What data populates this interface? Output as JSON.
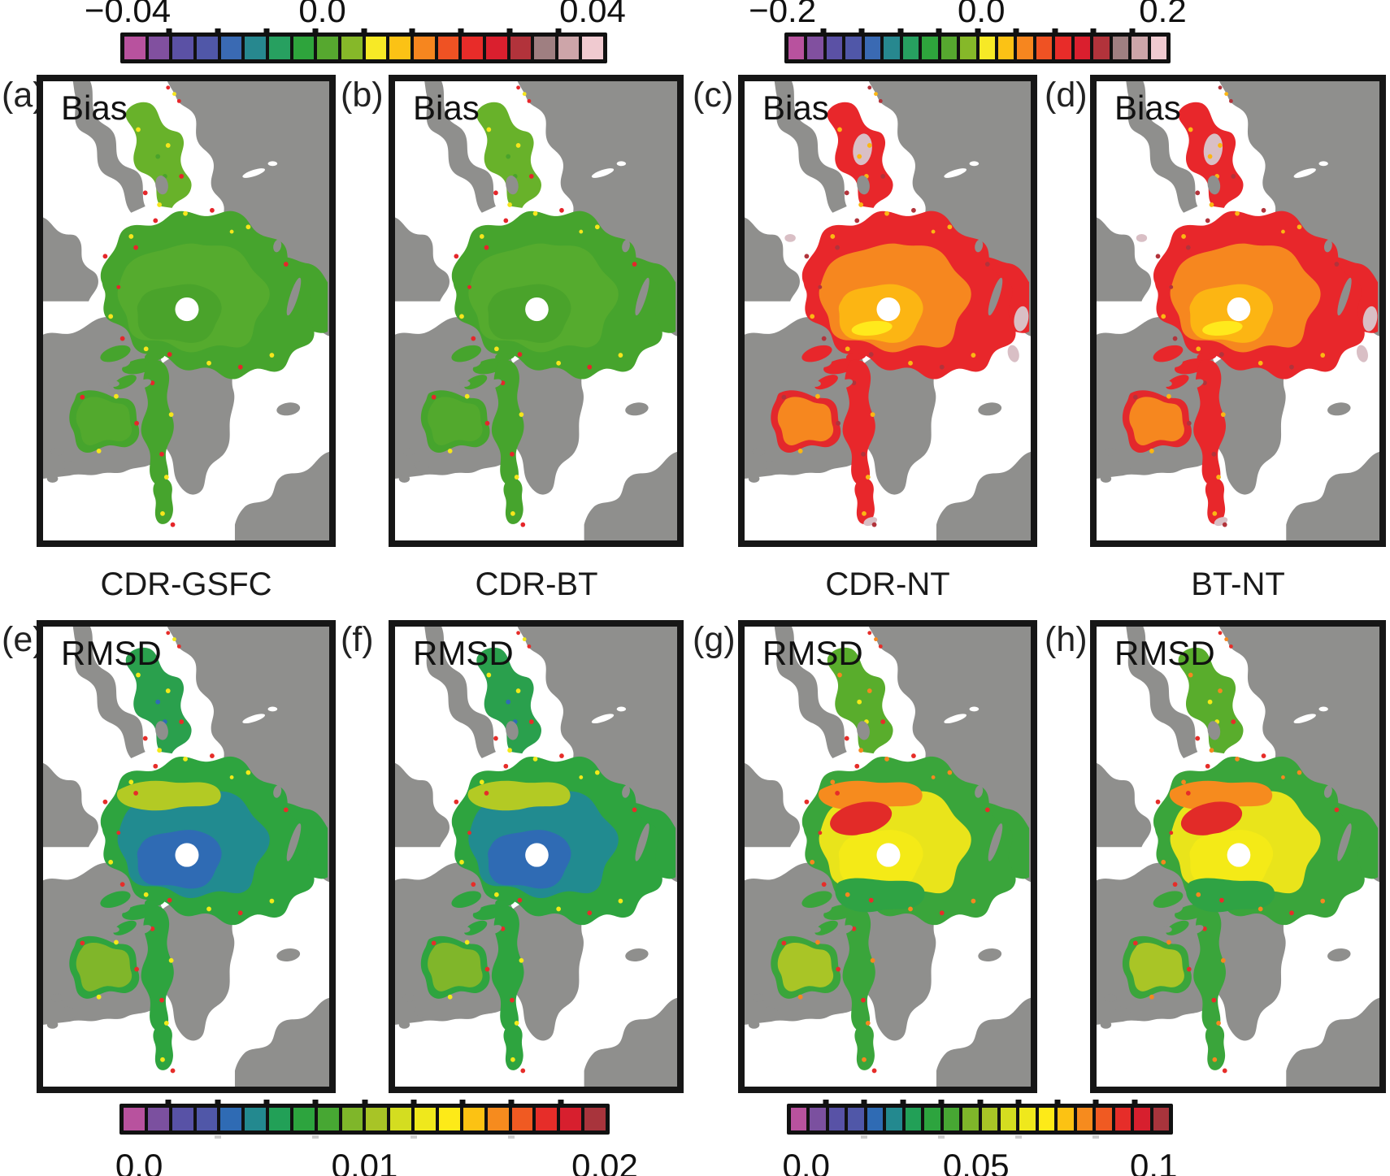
{
  "figure": {
    "background": "#ffffff",
    "land_color": "#8f8f8d",
    "ocean_color": "#ffffff",
    "frame_color": "#161616",
    "pole_hole_color": "#ffffff"
  },
  "columns": [
    {
      "label": "CDR-GSFC"
    },
    {
      "label": "CDR-BT"
    },
    {
      "label": "CDR-NT"
    },
    {
      "label": "BT-NT"
    }
  ],
  "panels": [
    {
      "letter": "(a)",
      "metric": "Bias",
      "scheme": "bias-small"
    },
    {
      "letter": "(b)",
      "metric": "Bias",
      "scheme": "bias-small"
    },
    {
      "letter": "(c)",
      "metric": "Bias",
      "scheme": "bias-large"
    },
    {
      "letter": "(d)",
      "metric": "Bias",
      "scheme": "bias-large"
    },
    {
      "letter": "(e)",
      "metric": "RMSD",
      "scheme": "rmsd-small"
    },
    {
      "letter": "(f)",
      "metric": "RMSD",
      "scheme": "rmsd-small"
    },
    {
      "letter": "(g)",
      "metric": "RMSD",
      "scheme": "rmsd-large"
    },
    {
      "letter": "(h)",
      "metric": "RMSD",
      "scheme": "rmsd-large"
    }
  ],
  "colorbars": {
    "top_left": {
      "labels": [
        "−0.04",
        "0.0",
        "0.04"
      ],
      "range": [
        -0.05,
        0.05
      ],
      "colors": [
        "#b8529e",
        "#81509f",
        "#5b51a5",
        "#5057a8",
        "#3a6ab3",
        "#27888f",
        "#27a060",
        "#2ea43c",
        "#56a82f",
        "#86b829",
        "#f7e926",
        "#fbc215",
        "#f6861f",
        "#ef5223",
        "#e82c29",
        "#da1f2e",
        "#b2333b",
        "#9f7f81",
        "#cda5a9",
        "#f0cad0"
      ]
    },
    "top_right": {
      "labels": [
        "−0.2",
        "0.0",
        "0.2"
      ],
      "range": [
        -0.25,
        0.25
      ],
      "colors": [
        "#b8529e",
        "#81509f",
        "#5b51a5",
        "#5057a8",
        "#3a6ab3",
        "#27888f",
        "#27a060",
        "#2ea43c",
        "#56a82f",
        "#86b829",
        "#f7e926",
        "#fbc215",
        "#f6861f",
        "#ef5223",
        "#e82c29",
        "#da1f2e",
        "#b2333b",
        "#9f7f81",
        "#cda5a9",
        "#f0cad0"
      ]
    },
    "bottom_left": {
      "labels": [
        "0.0",
        "0.01",
        "0.02"
      ],
      "range": [
        0,
        0.02
      ],
      "colors": [
        "#b8529e",
        "#7b509f",
        "#5852a6",
        "#5057a8",
        "#2f6bb4",
        "#23898f",
        "#22a057",
        "#2da43e",
        "#47a733",
        "#7fb62a",
        "#a8c426",
        "#d4dd20",
        "#efe81c",
        "#fdea18",
        "#fcc213",
        "#f68b1e",
        "#f05a22",
        "#e62d29",
        "#d71f2e",
        "#a8343c"
      ]
    },
    "bottom_right": {
      "labels": [
        "0.0",
        "0.05",
        "0.1"
      ],
      "range": [
        0,
        0.1
      ],
      "colors": [
        "#b8529e",
        "#7b509f",
        "#5852a6",
        "#5057a8",
        "#2f6bb4",
        "#23898f",
        "#22a057",
        "#2da43e",
        "#47a733",
        "#7fb62a",
        "#a8c426",
        "#d4dd20",
        "#efe81c",
        "#fdea18",
        "#fcc213",
        "#f68b1e",
        "#f05a22",
        "#e62d29",
        "#d71f2e",
        "#a8343c"
      ]
    }
  },
  "schemes": {
    "bias-small": {
      "c1": "#46a42d",
      "c2": "#55ab2e",
      "c3": "#4aa32b",
      "c4": "none",
      "c5": "none",
      "c6": "none",
      "c7": "none",
      "cb": "#68b22a",
      "ch": "#52a92d",
      "chr": "#46a42d",
      "cf": "#46a42d",
      "cp": "none",
      "s1": "#e5262a",
      "s2": "#f6e61c"
    },
    "bias-large": {
      "c1": "#e8272b",
      "c2": "#f6871f",
      "c3": "#fcb513",
      "c4": "none",
      "c5": "none",
      "c6": "#ffe91c",
      "c7": "none",
      "cb": "#e8272b",
      "ch": "#f6871f",
      "chr": "#e3282c",
      "cf": "#e8272b",
      "cp": "#d9bfc5",
      "s1": "#b2333b",
      "s2": "#fbb713"
    },
    "rmsd-small": {
      "c1": "#2ea43f",
      "c2": "#218b90",
      "c3": "#2f6bb4",
      "c4": "none",
      "c5": "#b3ca24",
      "c6": "none",
      "c7": "none",
      "cb": "#2aa04d",
      "ch": "#80b62a",
      "chr": "#2ea43f",
      "cf": "#2ea43f",
      "cp": "none",
      "s1": "#e62d29",
      "s2": "#f2ea19"
    },
    "rmsd-large": {
      "c1": "#3aa53b",
      "c2": "#e9e41b",
      "c3": "#f4ea17",
      "c4": "#e22b28",
      "c5": "#f68b1e",
      "c6": "none",
      "c7": "#2fa344",
      "cb": "#59ad2c",
      "ch": "#a9c526",
      "chr": "#3aa53b",
      "cf": "#3aa53b",
      "cp": "none",
      "s1": "#e62d29",
      "s2": "#f6871f"
    }
  },
  "chart_data": [
    {
      "type": "heatmap",
      "panel": "(a)",
      "metric": "Bias",
      "comparison": "CDR-GSFC",
      "colorbar_ticks": [
        "−0.04",
        "0.0",
        "0.04"
      ],
      "colorbar_range": [
        -0.04,
        0.04
      ],
      "summary": "Bias near 0 (green) over the whole Arctic ice pack; scattered values of about ±0.02 to ±0.04 (yellow/red) along coasts and the ice edge; white pole hole at center."
    },
    {
      "type": "heatmap",
      "panel": "(b)",
      "metric": "Bias",
      "comparison": "CDR-BT",
      "colorbar_ticks": [
        "−0.04",
        "0.0",
        "0.04"
      ],
      "colorbar_range": [
        -0.04,
        0.04
      ],
      "summary": "Bias near 0 (green) across the ice pack, very similar to CDR-GSFC, with sparse yellow/red speckles at coastlines and the marginal ice zone."
    },
    {
      "type": "heatmap",
      "panel": "(c)",
      "metric": "Bias",
      "comparison": "CDR-NT",
      "colorbar_ticks": [
        "−0.2",
        "0.0",
        "0.2"
      ],
      "colorbar_range": [
        -0.2,
        0.2
      ],
      "summary": "Positive bias of roughly +0.05 to +0.1 (orange) over the central Arctic, +0.02 to +0.05 (amber/yellow) near the pole hole, and greater than +0.15 (red, locally pinkish >0.2) in the marginal seas (Bering, Okhotsk, Baffin, Barents)."
    },
    {
      "type": "heatmap",
      "panel": "(d)",
      "metric": "Bias",
      "comparison": "BT-NT",
      "colorbar_ticks": [
        "−0.2",
        "0.0",
        "0.2"
      ],
      "colorbar_range": [
        -0.2,
        0.2
      ],
      "summary": "Pattern similar to CDR-NT: orange (~+0.05 to +0.1) central Arctic with amber/yellow near the pole, strong red (>+0.15) with grayish-pink patches (~+0.2) in the Bering Sea and other marginal seas."
    },
    {
      "type": "heatmap",
      "panel": "(e)",
      "metric": "RMSD",
      "comparison": "CDR-GSFC",
      "colorbar_ticks": [
        "0.0",
        "0.01",
        "0.02"
      ],
      "colorbar_range": [
        0,
        0.02
      ],
      "summary": "RMSD lowest (blue, ~0.002–0.005) around the pole, teal (~0.006–0.008) over the central pack, green to yellow (~0.01–0.015) toward the Atlantic side and marginal seas, red spots (~0.02) at the ice edge."
    },
    {
      "type": "heatmap",
      "panel": "(f)",
      "metric": "RMSD",
      "comparison": "CDR-BT",
      "colorbar_ticks": [
        "0.0",
        "0.01",
        "0.02"
      ],
      "colorbar_range": [
        0,
        0.02
      ],
      "summary": "Similar to panel (e) but with a slightly larger teal/green area: ~0.005–0.01 over the central Arctic, higher values (yellow/red, 0.015–0.02) along coasts and the ice edge."
    },
    {
      "type": "heatmap",
      "panel": "(g)",
      "metric": "RMSD",
      "comparison": "CDR-NT",
      "colorbar_ticks": [
        "0.0",
        "0.05",
        "0.1"
      ],
      "colorbar_range": [
        0,
        0.1
      ],
      "summary": "RMSD ~0.04–0.06 (yellow) over much of the Arctic with an orange/red core (~0.07–0.09) in the central pack north of the pole hole; green (~0.02–0.04) toward Greenland/Canada and in the peripheral seas."
    },
    {
      "type": "heatmap",
      "panel": "(h)",
      "metric": "RMSD",
      "comparison": "BT-NT",
      "colorbar_ticks": [
        "0.0",
        "0.05",
        "0.1"
      ],
      "colorbar_range": [
        0,
        0.1
      ],
      "summary": "Very similar to panel (g): yellow body (~0.04–0.06) with orange/red maximum (~0.08) in the central Arctic and green (~0.02–0.04) marginal regions."
    }
  ]
}
